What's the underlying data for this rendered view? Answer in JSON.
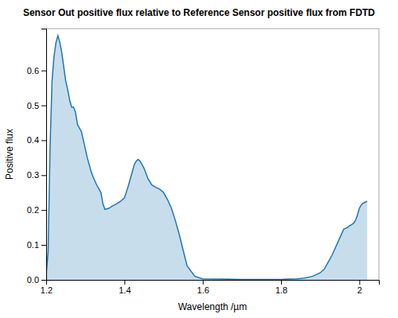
{
  "chart_data": {
    "type": "area",
    "title": "Sensor Out positive flux relative to Reference Sensor positive flux from FDTD",
    "x_label": "Wavelength /µm",
    "y_label": "Positive flux",
    "xlim": [
      1.2,
      2.05
    ],
    "ylim": [
      0.0,
      0.72
    ],
    "xticks": [
      1.2,
      1.4,
      1.6,
      1.8,
      2
    ],
    "yticks": [
      {
        "value": 0.0,
        "label": "0.0"
      },
      0.1,
      0.2,
      0.3,
      0.4,
      0.5,
      0.6
    ],
    "grid": false,
    "x": [
      1.2,
      1.205,
      1.21,
      1.215,
      1.22,
      1.225,
      1.23,
      1.235,
      1.24,
      1.245,
      1.25,
      1.255,
      1.26,
      1.265,
      1.27,
      1.275,
      1.28,
      1.285,
      1.29,
      1.295,
      1.3,
      1.305,
      1.31,
      1.315,
      1.32,
      1.325,
      1.33,
      1.335,
      1.34,
      1.345,
      1.35,
      1.36,
      1.37,
      1.38,
      1.39,
      1.4,
      1.41,
      1.42,
      1.425,
      1.43,
      1.435,
      1.44,
      1.445,
      1.45,
      1.46,
      1.47,
      1.48,
      1.49,
      1.5,
      1.51,
      1.52,
      1.53,
      1.54,
      1.55,
      1.56,
      1.58,
      1.6,
      1.65,
      1.7,
      1.75,
      1.8,
      1.82,
      1.84,
      1.86,
      1.88,
      1.9,
      1.91,
      1.92,
      1.93,
      1.94,
      1.95,
      1.96,
      1.97,
      1.975,
      1.98,
      1.985,
      1.99,
      1.995,
      2.0,
      2.005,
      2.01,
      2.02
    ],
    "values": [
      0.015,
      0.08,
      0.38,
      0.57,
      0.64,
      0.68,
      0.7,
      0.68,
      0.65,
      0.61,
      0.57,
      0.545,
      0.515,
      0.495,
      0.495,
      0.48,
      0.445,
      0.435,
      0.425,
      0.4,
      0.375,
      0.35,
      0.33,
      0.31,
      0.295,
      0.282,
      0.27,
      0.26,
      0.25,
      0.218,
      0.202,
      0.205,
      0.212,
      0.218,
      0.225,
      0.235,
      0.27,
      0.31,
      0.33,
      0.34,
      0.345,
      0.34,
      0.33,
      0.32,
      0.29,
      0.272,
      0.265,
      0.26,
      0.25,
      0.23,
      0.205,
      0.17,
      0.13,
      0.085,
      0.04,
      0.01,
      0.003,
      0.002,
      0.001,
      0.001,
      0.001,
      0.002,
      0.003,
      0.005,
      0.01,
      0.02,
      0.03,
      0.05,
      0.07,
      0.095,
      0.12,
      0.145,
      0.15,
      0.155,
      0.158,
      0.162,
      0.17,
      0.185,
      0.205,
      0.215,
      0.22,
      0.225
    ]
  }
}
